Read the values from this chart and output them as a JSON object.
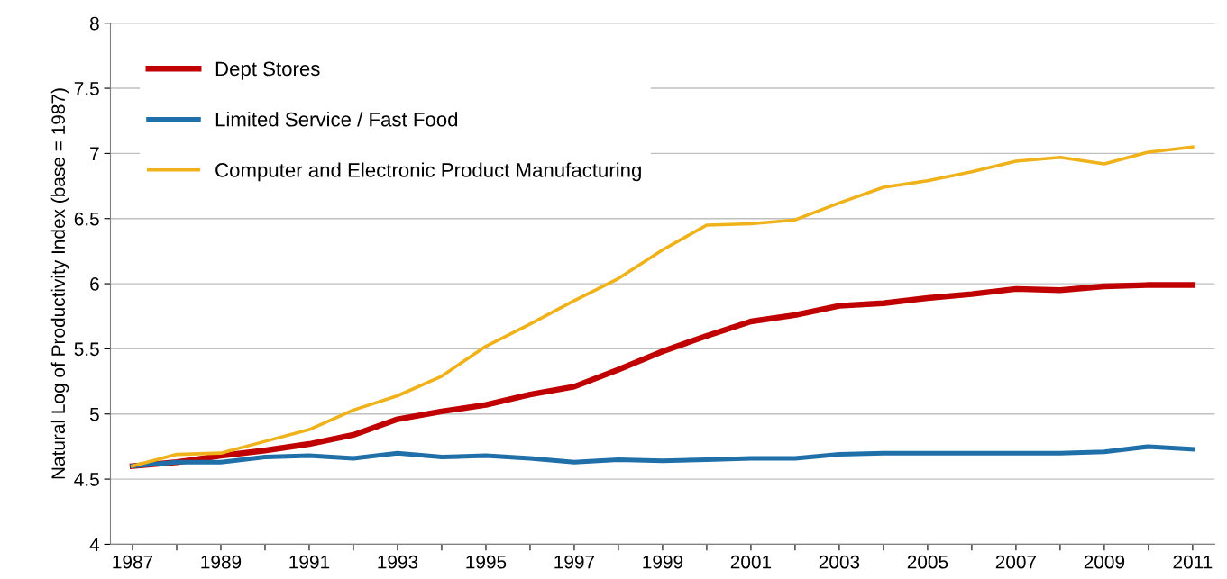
{
  "chart_data": {
    "type": "line",
    "ylabel": "Natural Log of Productivity Index (base = 1987)",
    "categories": [
      "1987",
      null,
      "1989",
      null,
      "1991",
      null,
      "1993",
      null,
      "1995",
      null,
      "1997",
      null,
      "1999",
      null,
      "2001",
      null,
      "2003",
      null,
      "2005",
      null,
      "2007",
      null,
      "2009",
      null,
      "2011"
    ],
    "series": [
      {
        "name": "Dept Stores",
        "color": "#c00000",
        "values": [
          4.6,
          4.63,
          4.68,
          4.72,
          4.77,
          4.84,
          4.96,
          5.02,
          5.07,
          5.15,
          5.21,
          5.34,
          5.48,
          5.6,
          5.71,
          5.76,
          5.83,
          5.85,
          5.89,
          5.92,
          5.96,
          5.95,
          5.98,
          5.99,
          5.99
        ]
      },
      {
        "name": "Limited Service / Fast Food",
        "color": "#1f6fa8",
        "values": [
          4.6,
          4.63,
          4.63,
          4.67,
          4.68,
          4.66,
          4.7,
          4.67,
          4.68,
          4.66,
          4.63,
          4.65,
          4.64,
          4.65,
          4.66,
          4.66,
          4.69,
          4.7,
          4.7,
          4.7,
          4.7,
          4.7,
          4.71,
          4.75,
          4.73
        ]
      },
      {
        "name": "Computer and Electronic Product Manufacturing",
        "color": "#f0b21b",
        "values": [
          4.6,
          4.69,
          4.7,
          4.79,
          4.88,
          5.03,
          5.14,
          5.29,
          5.52,
          5.69,
          5.87,
          6.04,
          6.26,
          6.45,
          6.46,
          6.49,
          6.62,
          6.74,
          6.79,
          6.86,
          6.94,
          6.97,
          6.92,
          7.01,
          7.05
        ]
      }
    ],
    "ylim": [
      4,
      8
    ],
    "yticks": [
      4,
      {
        "value": 4.5,
        "label": "4.5"
      },
      5,
      {
        "value": 5.5,
        "label": "5.5"
      },
      6,
      {
        "value": 6.5,
        "label": "6.5"
      },
      7,
      {
        "value": 7.5,
        "label": "7.5"
      },
      8
    ],
    "grid": "y",
    "legend": "top left",
    "marker": "none",
    "line_style": "solid"
  }
}
